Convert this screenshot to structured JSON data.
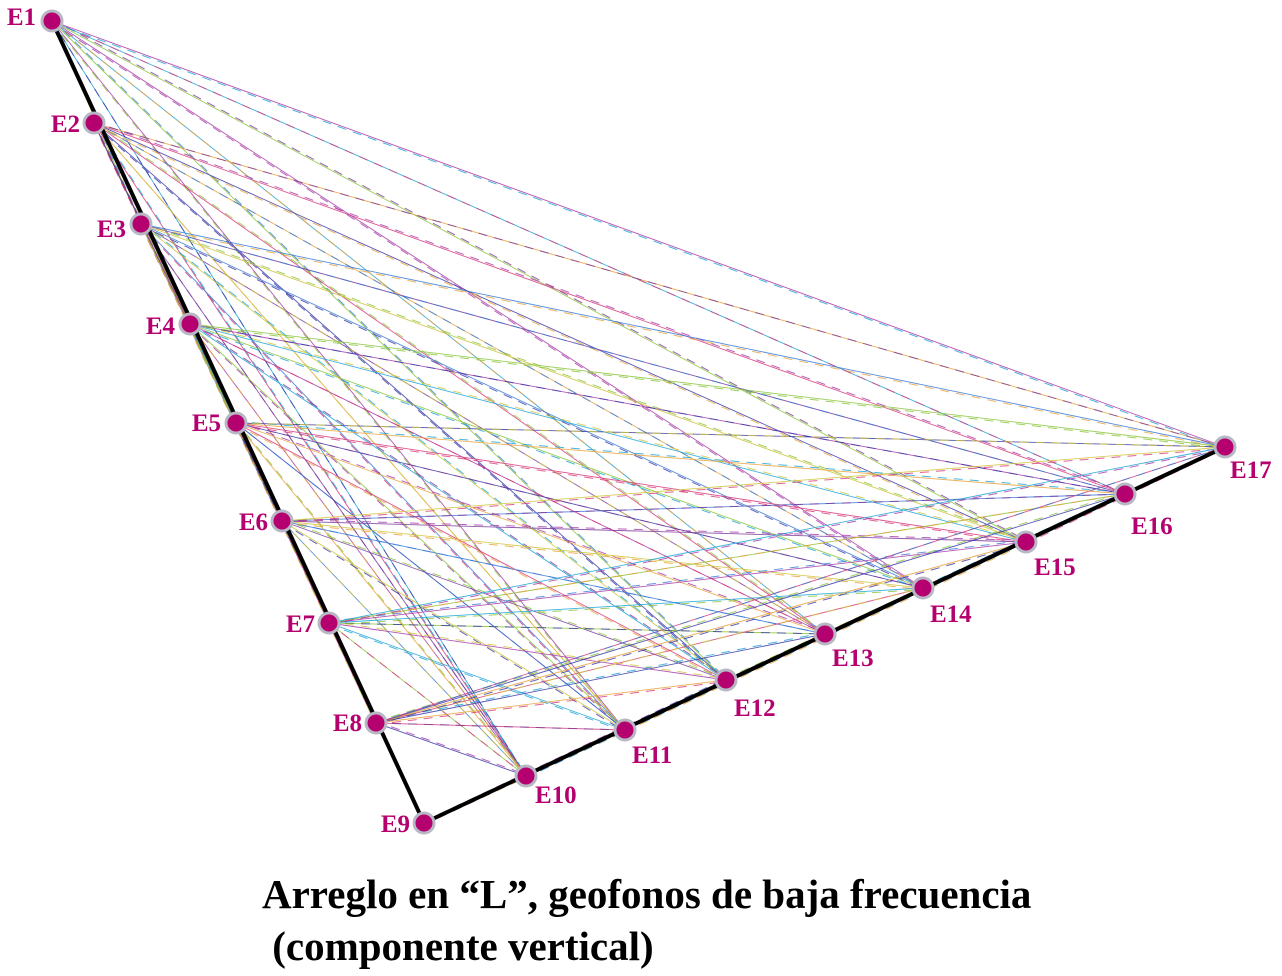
{
  "diagram": {
    "stations": [
      "E1",
      "E2",
      "E3",
      "E4",
      "E5",
      "E6",
      "E7",
      "E8",
      "E9",
      "E10",
      "E11",
      "E12",
      "E13",
      "E14",
      "E15",
      "E16",
      "E17"
    ],
    "station_color": "#b5006f",
    "station_outline_color": "#b8b8c4",
    "array_line_color": "#000000",
    "pair_line_colors": [
      "#1aa3d6",
      "#e8a23a",
      "#cfc43a",
      "#a83aa8",
      "#3a3aa8",
      "#7a3a9a",
      "#8ac43a",
      "#d83a7a",
      "#3a7ad6"
    ],
    "pair_line_styles": [
      "solid",
      "dashed"
    ]
  },
  "caption": {
    "line1": "Arreglo en “L”, geofonos de baja frecuencia",
    "line2": " (componente vertical)"
  }
}
